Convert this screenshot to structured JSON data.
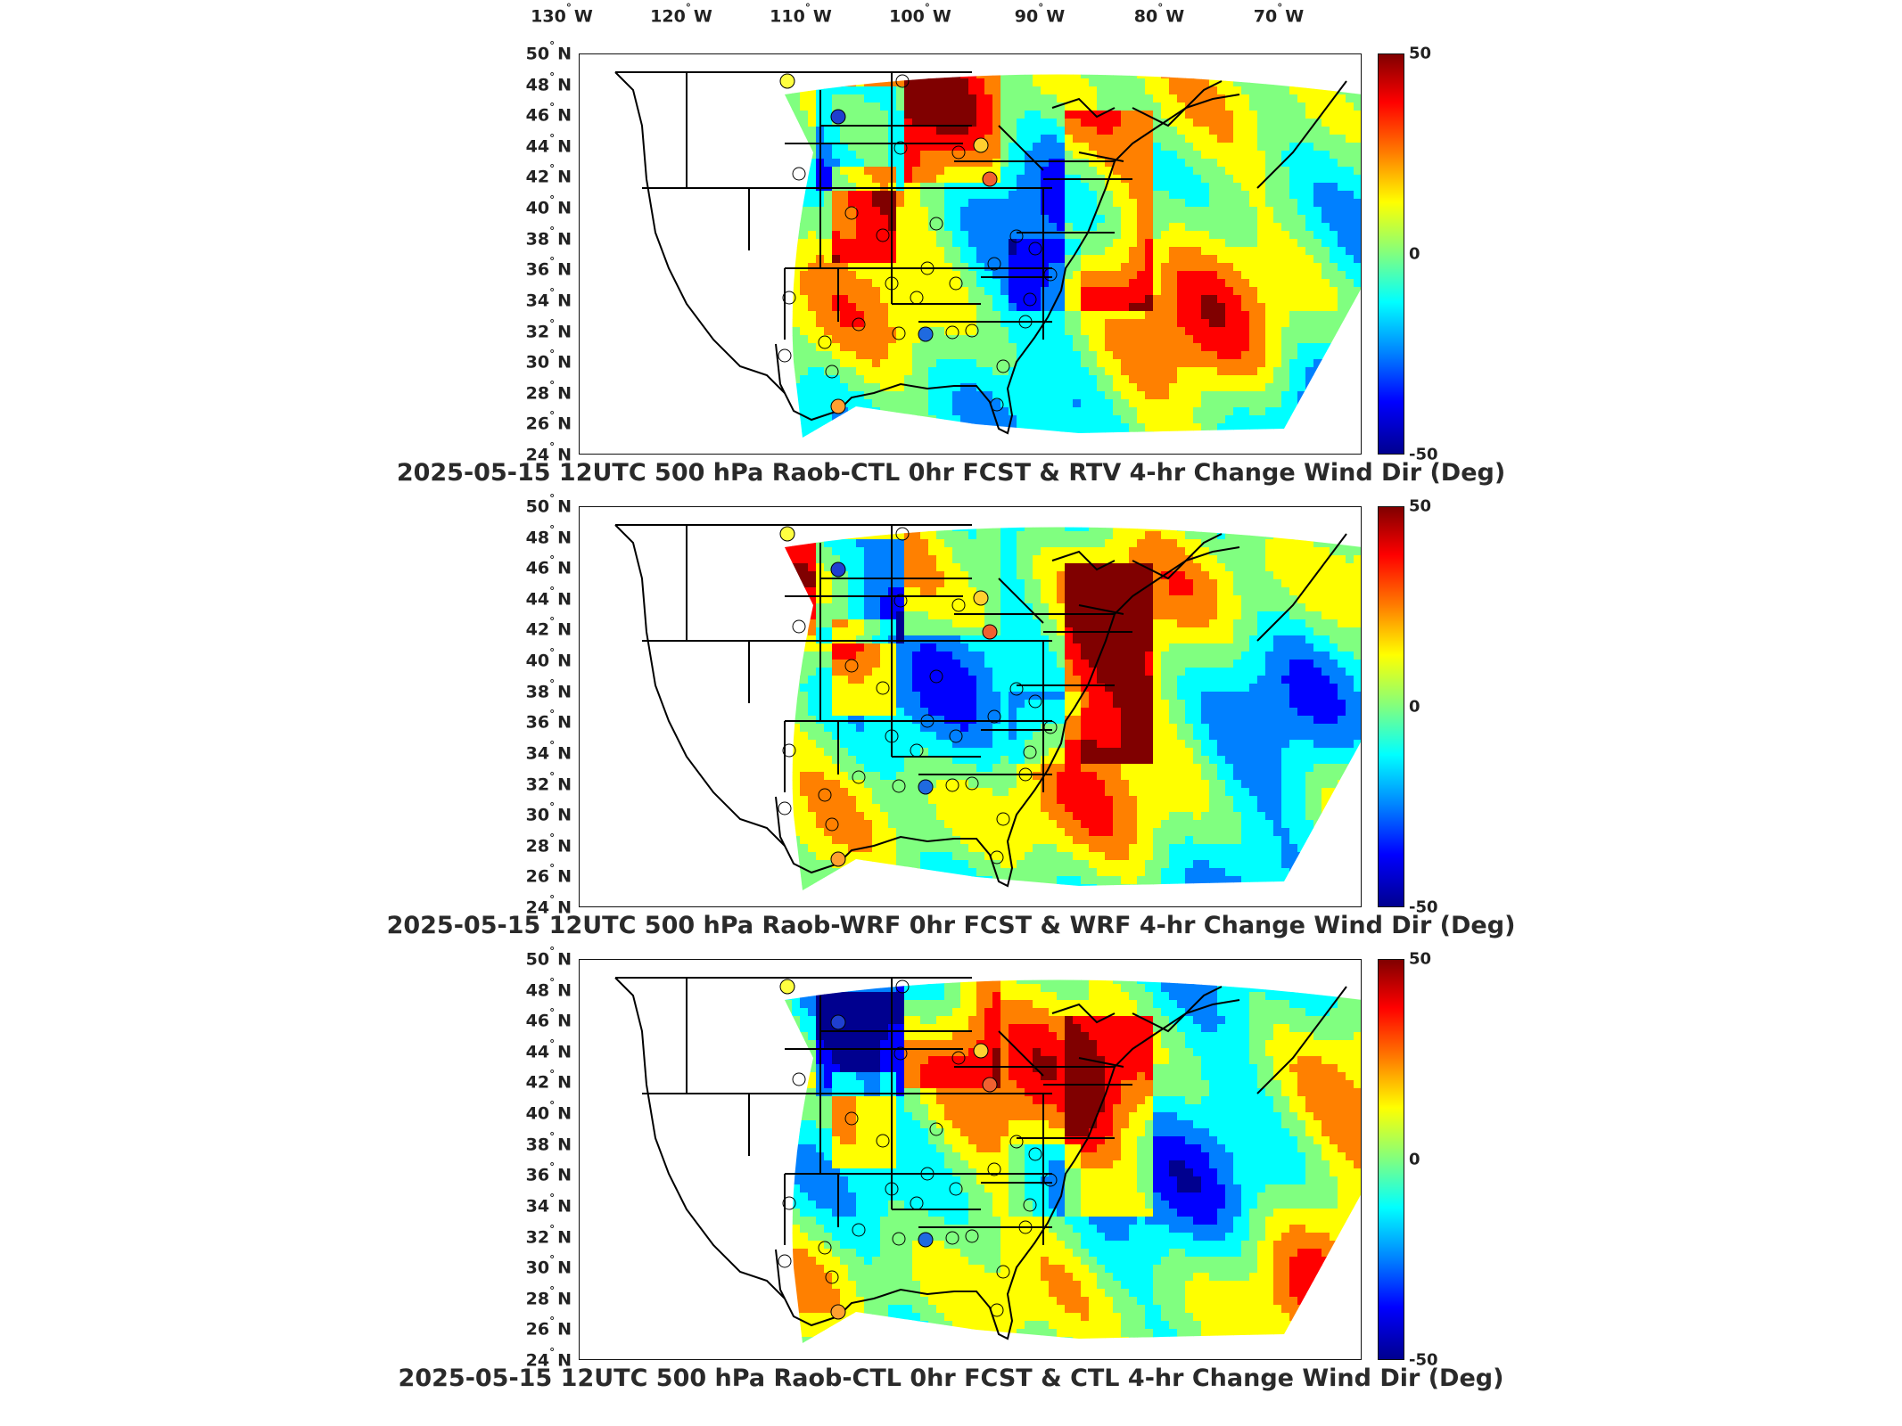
{
  "longitude_labels": [
    {
      "deg": "130",
      "hem": "W"
    },
    {
      "deg": "120",
      "hem": "W"
    },
    {
      "deg": "110",
      "hem": "W"
    },
    {
      "deg": "100",
      "hem": "W"
    },
    {
      "deg": "90",
      "hem": "W"
    },
    {
      "deg": "80",
      "hem": "W"
    },
    {
      "deg": "70",
      "hem": "W"
    }
  ],
  "latitude_labels": [
    {
      "deg": "50",
      "hem": "N"
    },
    {
      "deg": "48",
      "hem": "N"
    },
    {
      "deg": "46",
      "hem": "N"
    },
    {
      "deg": "44",
      "hem": "N"
    },
    {
      "deg": "42",
      "hem": "N"
    },
    {
      "deg": "40",
      "hem": "N"
    },
    {
      "deg": "38",
      "hem": "N"
    },
    {
      "deg": "36",
      "hem": "N"
    },
    {
      "deg": "34",
      "hem": "N"
    },
    {
      "deg": "32",
      "hem": "N"
    },
    {
      "deg": "30",
      "hem": "N"
    },
    {
      "deg": "28",
      "hem": "N"
    },
    {
      "deg": "26",
      "hem": "N"
    },
    {
      "deg": "24",
      "hem": "N"
    }
  ],
  "colorbar": {
    "max_label": "50",
    "mid_label": "0",
    "min_label": "-50",
    "colormap": [
      "#800000",
      "#ff0000",
      "#ff8000",
      "#ffff00",
      "#80ff80",
      "#00ffff",
      "#0080ff",
      "#0000ff",
      "#00008f"
    ]
  },
  "panels": [
    {
      "title": "2025-05-15 12UTC 500 hPa Raob-CTL 0hr FCST & RTV 4-hr Change Wind Dir (Deg)"
    },
    {
      "title": "2025-05-15 12UTC 500 hPa Raob-WRF 0hr FCST & WRF 4-hr Change Wind Dir (Deg)"
    },
    {
      "title": "2025-05-15 12UTC 500 hPa Raob-CTL 0hr FCST & CTL 4-hr Change Wind Dir (Deg)"
    }
  ],
  "map_data": {
    "type": "heatmap-map",
    "variable": "Wind Dir (Deg)",
    "value_range": [
      -50,
      50
    ],
    "region": "Contiguous United States",
    "lon_range": [
      -134,
      -64
    ],
    "lat_range": [
      24,
      50
    ]
  }
}
